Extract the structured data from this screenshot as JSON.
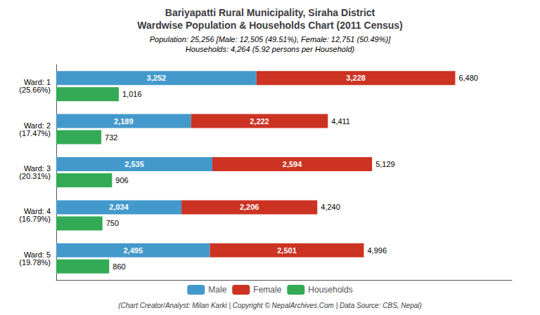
{
  "chart_data": {
    "type": "bar",
    "orientation": "horizontal",
    "title": "Bariyapatti Rural Municipality, Siraha District\nWardwise Population & Households Chart (2011 Census)",
    "subtitle": "Population: 25,256 [Male: 12,505 (49.51%), Female: 12,751 (50.49%)]\nHouseholds: 4,264 (5.92 persons per Household)",
    "annotations": [
      "(Chart Creator/Analyst: Milan Karki | Copyright © NepalArchives.Com | Data Source: CBS, Nepal)"
    ],
    "categories": [
      "Ward: 1\n(25.66%)",
      "Ward: 2\n(17.47%)",
      "Ward: 3\n(20.31%)",
      "Ward: 4\n(16.79%)",
      "Ward: 5\n(19.78%)"
    ],
    "series": [
      {
        "name": "Male",
        "color": "#4499cc",
        "stacked": true,
        "values": [
          3252,
          2189,
          2535,
          2034,
          2495
        ],
        "value_labels": [
          "3,252",
          "2,189",
          "2,535",
          "2,034",
          "2,495"
        ]
      },
      {
        "name": "Female",
        "color": "#cc3322",
        "stacked": true,
        "values": [
          3228,
          2222,
          2594,
          2206,
          2501
        ],
        "value_labels": [
          "3,228",
          "2,222",
          "2,594",
          "2,206",
          "2,501"
        ]
      },
      {
        "name": "Households",
        "color": "#33aa55",
        "stacked": false,
        "values": [
          1016,
          732,
          906,
          750,
          860
        ],
        "value_labels": [
          "1,016",
          "732",
          "906",
          "750",
          "860"
        ]
      }
    ],
    "totals": [
      6480,
      4411,
      5129,
      4240,
      4996
    ],
    "total_labels": [
      "6,480",
      "4,411",
      "5,129",
      "4,240",
      "4,996"
    ],
    "xlim": [
      0,
      7400
    ],
    "data_labels": true,
    "tick_labels": "y",
    "grid": false,
    "legend": "bottom"
  }
}
